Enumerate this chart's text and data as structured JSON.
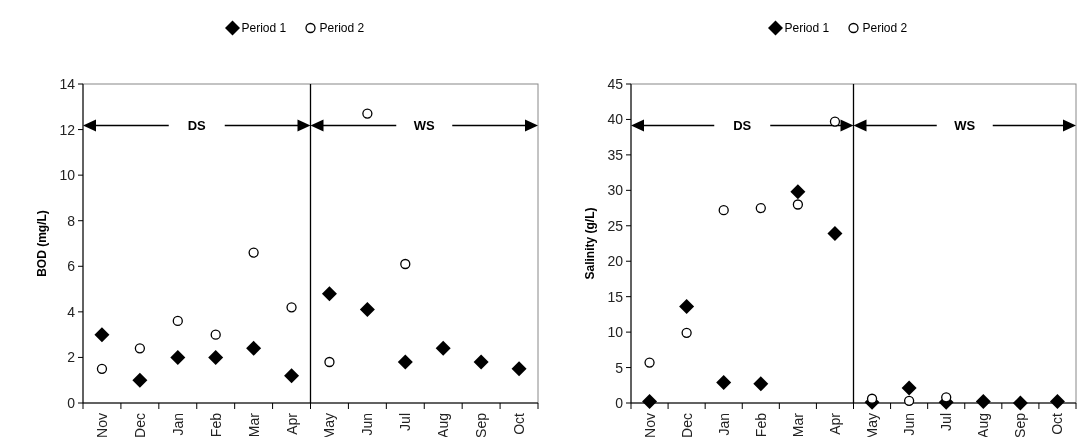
{
  "chart_data": [
    {
      "type": "scatter",
      "ylabel": "BOD (mg/L)",
      "categories": [
        "Nov",
        "Dec",
        "Jan",
        "Feb",
        "Mar",
        "Apr",
        "May",
        "Jun",
        "Jul",
        "Aug",
        "Sep",
        "Oct"
      ],
      "ylim": [
        0,
        14
      ],
      "yticks": [
        0,
        2,
        4,
        6,
        8,
        10,
        12,
        14
      ],
      "legend": "top",
      "grid": false,
      "annotations": [
        "DS",
        "WS"
      ],
      "series": [
        {
          "name": "Period 1",
          "color": "#000000",
          "marker": "diamond",
          "values": [
            3.0,
            1.0,
            2.0,
            2.0,
            2.4,
            1.2,
            4.8,
            4.1,
            1.8,
            2.4,
            1.8,
            1.5
          ]
        },
        {
          "name": "Period 2",
          "color": "#000000",
          "marker": "circle",
          "values": [
            1.5,
            2.4,
            3.6,
            3.0,
            6.6,
            4.2,
            1.8,
            12.7,
            6.1,
            null,
            null,
            null
          ]
        }
      ]
    },
    {
      "type": "scatter",
      "ylabel": "Salinity (g/L)",
      "categories": [
        "Nov",
        "Dec",
        "Jan",
        "Feb",
        "Mar",
        "Apr",
        "May",
        "Jun",
        "Jul",
        "Aug",
        "Sep",
        "Oct"
      ],
      "ylim": [
        0,
        45
      ],
      "yticks": [
        0,
        5,
        10,
        15,
        20,
        25,
        30,
        35,
        40,
        45
      ],
      "legend": "top",
      "grid": false,
      "annotations": [
        "DS",
        "WS"
      ],
      "series": [
        {
          "name": "Period 1",
          "color": "#000000",
          "marker": "diamond",
          "values": [
            0.2,
            13.6,
            2.9,
            2.7,
            29.8,
            23.9,
            0.1,
            2.1,
            0.1,
            0.2,
            0,
            0.2
          ]
        },
        {
          "name": "Period 2",
          "color": "#000000",
          "marker": "circle",
          "values": [
            5.7,
            9.9,
            27.2,
            27.5,
            28,
            39.7,
            0.6,
            0.3,
            0.8,
            null,
            null,
            null
          ]
        }
      ]
    }
  ]
}
